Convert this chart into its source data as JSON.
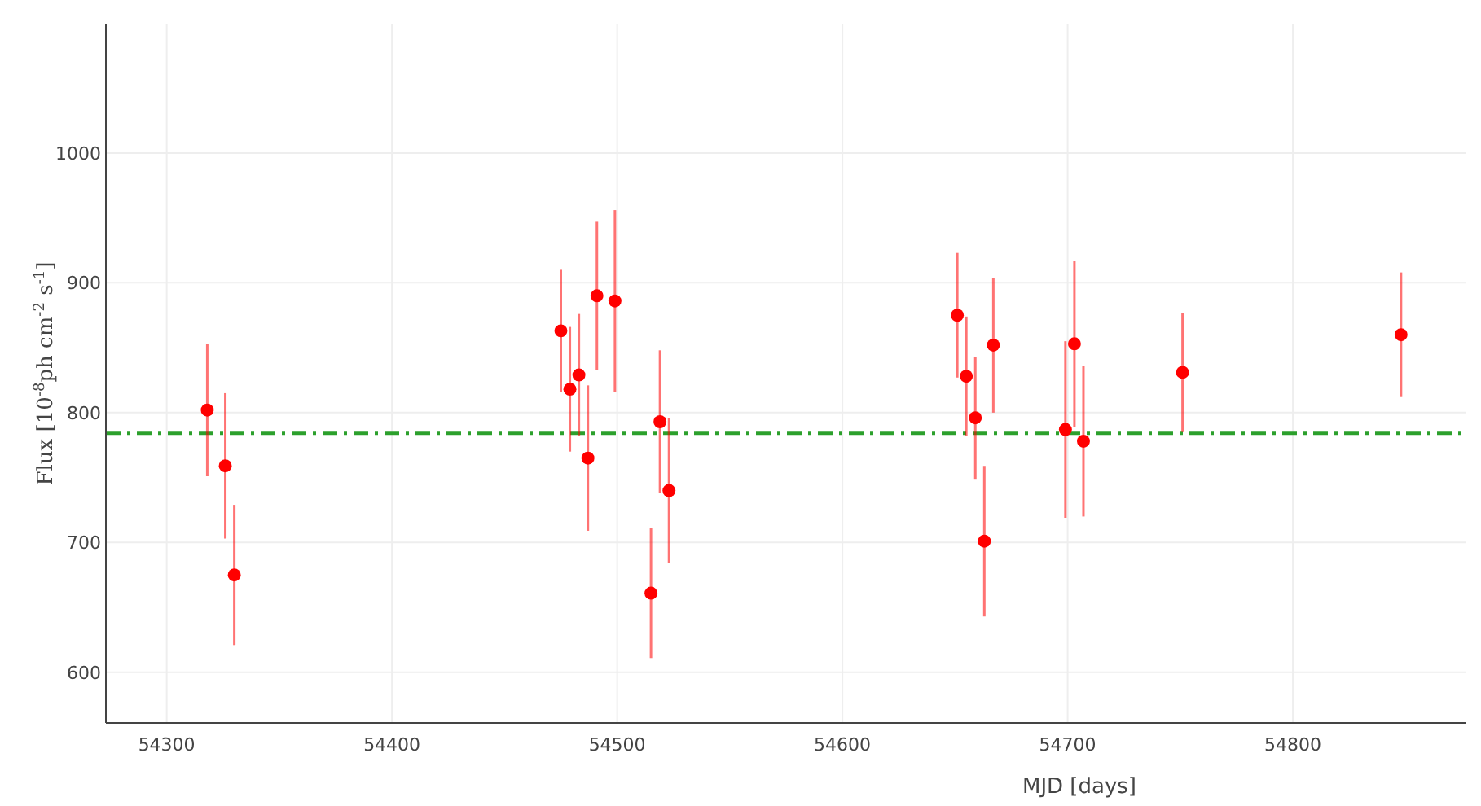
{
  "chart_data": {
    "type": "scatter",
    "xlabel": "MJD [days]",
    "ylabel": "Flux [10$^{-8}$ph cm$^{-2}$ s$^{-1}$]",
    "x": [
      54318,
      54326,
      54330,
      54475,
      54479,
      54483,
      54487,
      54491,
      54499,
      54515,
      54519,
      54523,
      54651,
      54655,
      54659,
      54663,
      54667,
      54699,
      54703,
      54707,
      54751,
      54848
    ],
    "series": [
      {
        "color": "#ff0000",
        "values": [
          802,
          759,
          675,
          863,
          818,
          829,
          765,
          890,
          886,
          661,
          793,
          740,
          875,
          828,
          796,
          701,
          852,
          787,
          853,
          778,
          831,
          860
        ],
        "errors": [
          51,
          56,
          54,
          47,
          48,
          47,
          56,
          57,
          70,
          50,
          55,
          56,
          48,
          46,
          47,
          58,
          52,
          68,
          64,
          58,
          46,
          48
        ]
      }
    ],
    "ref_lines": [
      {
        "axis": "y",
        "value": 784,
        "color": "#2ca02c",
        "line_style": "dashed"
      }
    ],
    "xlim": [
      54273,
      54877
    ],
    "ylim": [
      561,
      1099
    ],
    "xticks": [
      54300,
      54400,
      54500,
      54600,
      54700,
      54800
    ],
    "yticks": [
      600,
      700,
      800,
      900,
      1000
    ],
    "grid": true,
    "marker": "circle"
  }
}
